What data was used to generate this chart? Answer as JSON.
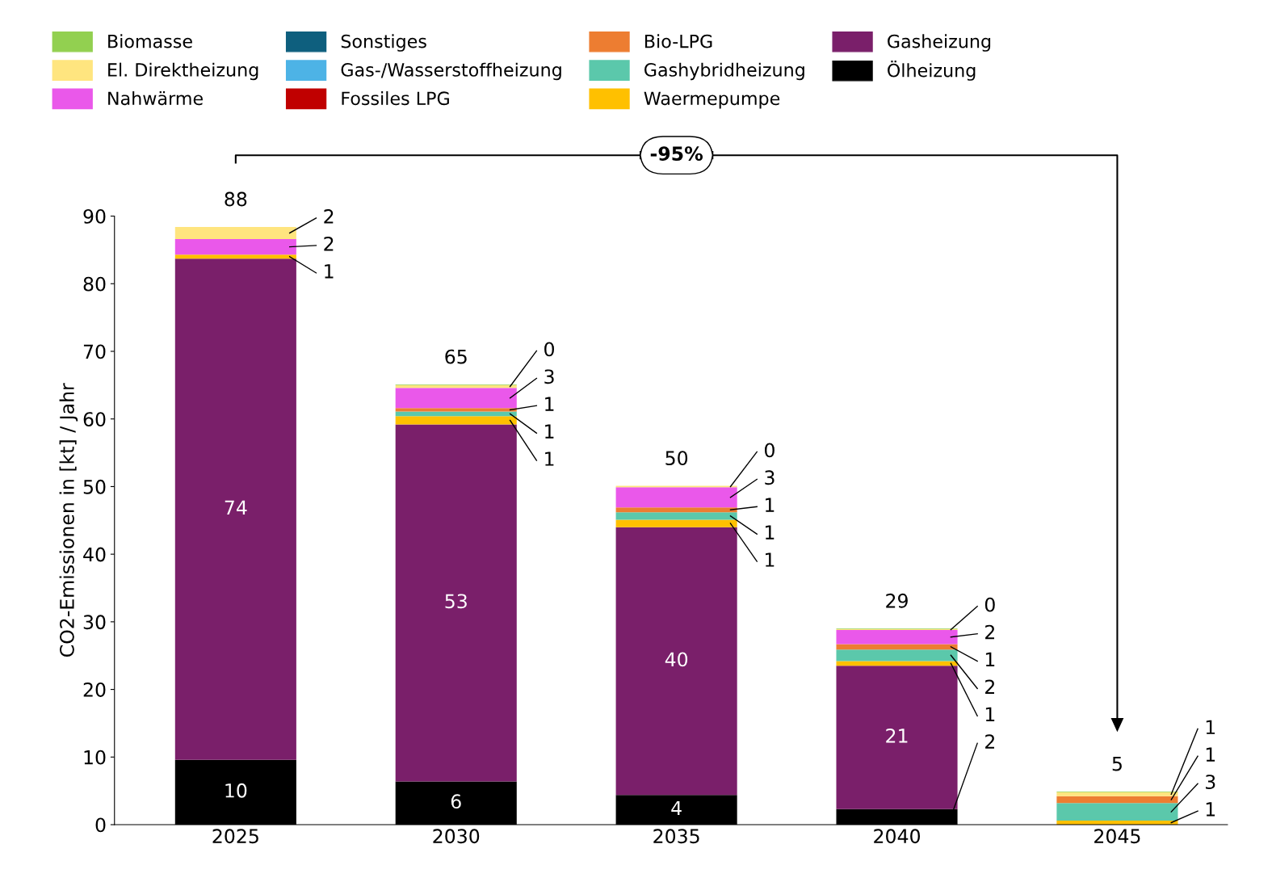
{
  "chart_data": {
    "type": "bar",
    "stacked": true,
    "ylabel": "CO2-Emissionen in [kt] / Jahr",
    "categories": [
      "2025",
      "2030",
      "2035",
      "2040",
      "2045"
    ],
    "ylim": [
      0,
      90
    ],
    "yticks": [
      0,
      10,
      20,
      30,
      40,
      50,
      60,
      70,
      80,
      90
    ],
    "grid": false,
    "legend": "top",
    "totals": [
      "88",
      "65",
      "50",
      "29",
      "5"
    ],
    "annotations": [
      "-95%"
    ],
    "series": [
      {
        "name": "Ölheizung",
        "color": "#000000",
        "values": [
          9.6,
          6.4,
          4.4,
          2.3,
          0
        ],
        "value_labels": [
          "10",
          "6",
          "4",
          "2",
          null
        ]
      },
      {
        "name": "Gasheizung",
        "color": "#7a1f6a",
        "values": [
          74.1,
          52.8,
          39.6,
          21.2,
          0
        ],
        "value_labels": [
          "74",
          "53",
          "40",
          "21",
          null
        ]
      },
      {
        "name": "Waermepumpe",
        "color": "#ffc000",
        "values": [
          0.6,
          1.2,
          1.1,
          0.7,
          0.6
        ],
        "value_labels": [
          "1",
          "1",
          "1",
          "1",
          "1"
        ]
      },
      {
        "name": "Gashybridheizung",
        "color": "#5bc8ab",
        "values": [
          0,
          0.7,
          1.1,
          1.7,
          2.6
        ],
        "value_labels": [
          null,
          "1",
          "1",
          "2",
          "3"
        ]
      },
      {
        "name": "Bio-LPG",
        "color": "#ed7d31",
        "values": [
          0,
          0.5,
          0.7,
          0.8,
          1.0
        ],
        "value_labels": [
          null,
          "1",
          "1",
          "1",
          "1"
        ]
      },
      {
        "name": "Fossiles LPG",
        "color": "#c00000",
        "values": [
          0,
          0,
          0,
          0,
          0
        ]
      },
      {
        "name": "Gas-/Wasserstoffheizung",
        "color": "#4db3e6",
        "values": [
          0,
          0,
          0,
          0,
          0
        ]
      },
      {
        "name": "Sonstiges",
        "color": "#0e5f7e",
        "values": [
          0,
          0,
          0,
          0,
          0
        ]
      },
      {
        "name": "Nahwärme",
        "color": "#ea58ea",
        "values": [
          2.3,
          3.0,
          3.0,
          2.1,
          0
        ],
        "value_labels": [
          "2",
          "3",
          "3",
          "2",
          null
        ]
      },
      {
        "name": "El. Direktheizung",
        "color": "#ffe57f",
        "values": [
          1.8,
          0.4,
          0.2,
          0.1,
          0.6
        ],
        "value_labels": [
          "2",
          "0",
          "0",
          "0",
          "1"
        ]
      },
      {
        "name": "Biomasse",
        "color": "#92d050",
        "values": [
          0,
          0.1,
          0,
          0.1,
          0.1
        ]
      }
    ]
  }
}
